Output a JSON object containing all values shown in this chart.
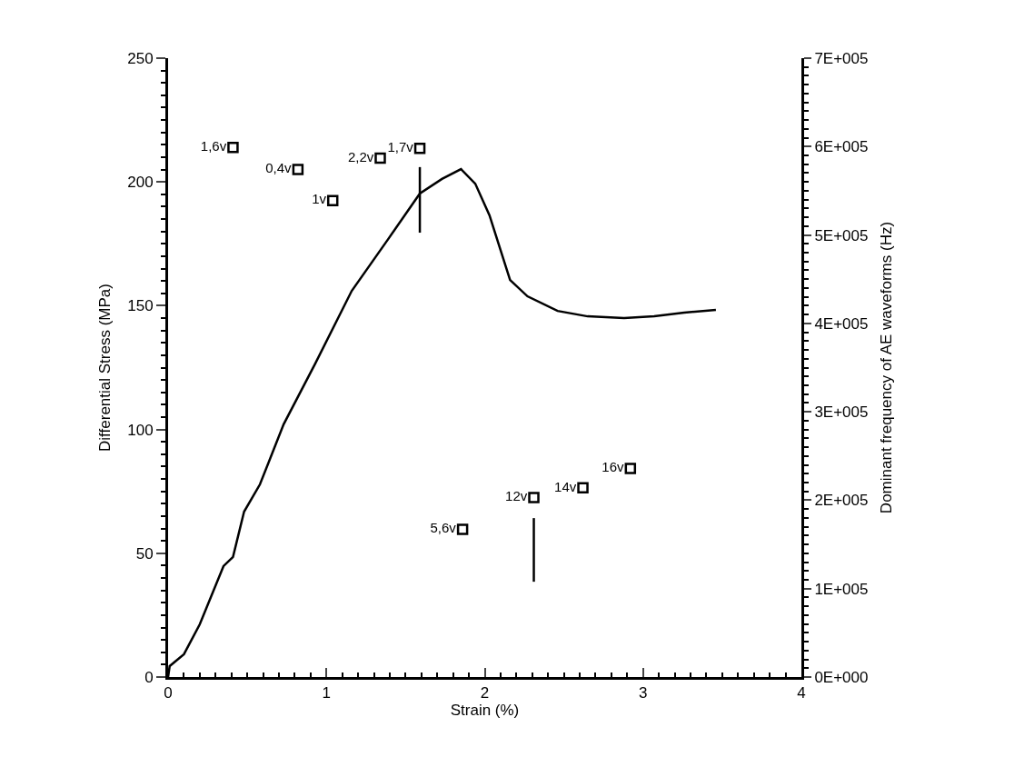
{
  "chart_data": {
    "type": "scatter",
    "xlabel": "Strain (%)",
    "ylabel": "Differential Stress (MPa)",
    "y2label": "Dominant frequency of AE waveforms (Hz)",
    "xlim": [
      0,
      4
    ],
    "xticks": [
      0,
      1,
      2,
      3,
      4
    ],
    "ylim": [
      0,
      250
    ],
    "yticks": [
      0,
      50,
      100,
      150,
      200,
      250
    ],
    "y2lim": [
      0,
      700000
    ],
    "y2ticks": [
      {
        "value": 0,
        "label": "0E+000"
      },
      {
        "value": 100000,
        "label": "1E+005"
      },
      {
        "value": 200000,
        "label": "2E+005"
      },
      {
        "value": 300000,
        "label": "3E+005"
      },
      {
        "value": 400000,
        "label": "4E+005"
      },
      {
        "value": 500000,
        "label": "5E+005"
      },
      {
        "value": 600000,
        "label": "6E+005"
      },
      {
        "value": 700000,
        "label": "7E+005"
      }
    ],
    "legend": false,
    "marker": "square",
    "series": [
      {
        "type": "line",
        "color": "#000000",
        "marker": "none",
        "x": [
          0,
          0.01,
          0.1,
          0.2,
          0.35,
          0.41,
          0.48,
          0.58,
          0.73,
          0.93,
          1.16,
          1.39,
          1.59,
          1.73,
          1.85,
          1.94,
          2.03,
          2.16,
          2.27,
          2.46,
          2.65,
          2.88,
          3.07,
          3.26,
          3.46
        ],
        "values": [
          0,
          4.4,
          9.2,
          21.3,
          44.8,
          48.5,
          66.8,
          77.8,
          102.1,
          126.7,
          156.0,
          176.9,
          195.3,
          201.2,
          205.2,
          199.3,
          186.5,
          160.4,
          153.8,
          147.9,
          145.7,
          145.0,
          145.7,
          147.2,
          148.3
        ]
      },
      {
        "type": "line",
        "color": "#000000",
        "marker": "none",
        "x": [
          1.59,
          1.59
        ],
        "values": [
          179.5,
          206
        ]
      },
      {
        "type": "line",
        "color": "#000000",
        "marker": "none",
        "x": [
          2.31,
          2.31
        ],
        "values": [
          38.5,
          64.2
        ]
      },
      {
        "name": "1,6v",
        "axis": "y2",
        "color": "#000000",
        "x": [
          0.41
        ],
        "values": [
          599000
        ]
      },
      {
        "name": "0,4v",
        "axis": "y2",
        "color": "#000000",
        "x": [
          0.82
        ],
        "values": [
          574000
        ]
      },
      {
        "name": "1v",
        "axis": "y2",
        "color": "#000000",
        "x": [
          1.04
        ],
        "values": [
          539000
        ]
      },
      {
        "name": "2,2v",
        "axis": "y2",
        "color": "#000000",
        "x": [
          1.34
        ],
        "values": [
          587000
        ]
      },
      {
        "name": "1,7v",
        "axis": "y2",
        "color": "#000000",
        "x": [
          1.59
        ],
        "values": [
          598000
        ]
      },
      {
        "name": "5,6v",
        "axis": "y2",
        "color": "#000000",
        "x": [
          1.86
        ],
        "values": [
          167000
        ]
      },
      {
        "name": "12v",
        "axis": "y2",
        "color": "#000000",
        "x": [
          2.31
        ],
        "values": [
          203000
        ]
      },
      {
        "name": "14v",
        "axis": "y2",
        "color": "#000000",
        "x": [
          2.62
        ],
        "values": [
          214000
        ]
      },
      {
        "name": "16v",
        "axis": "y2",
        "color": "#000000",
        "x": [
          2.92
        ],
        "values": [
          236000
        ]
      }
    ]
  }
}
